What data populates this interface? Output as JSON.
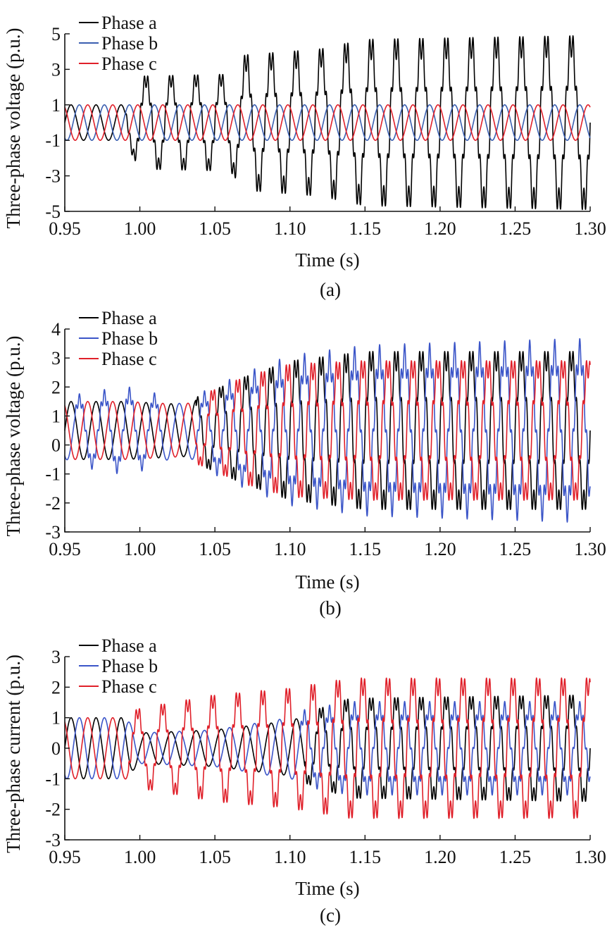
{
  "chart_data": [
    {
      "id": "a",
      "type": "line",
      "caption": "(a)",
      "xlabel": "Time (s)",
      "ylabel": "Three-phase voltage (p.u.)",
      "xlim": [
        0.95,
        1.3
      ],
      "ylim": [
        -5,
        5
      ],
      "xticks": [
        "0.95",
        "1.00",
        "1.05",
        "1.10",
        "1.15",
        "1.20",
        "1.25",
        "1.30"
      ],
      "yticks": [
        "5",
        "3",
        "1",
        "-1",
        "-3",
        "-5"
      ],
      "ytick_values": [
        5,
        3,
        1,
        -1,
        -3,
        -5
      ],
      "legend_position": "top-left",
      "series": [
        {
          "name": "Phase a",
          "color": "#000000",
          "envelope": {
            "t": [
              0.95,
              0.99,
              1.0,
              1.06,
              1.07,
              1.12,
              1.15,
              1.3
            ],
            "amp": [
              1,
              1,
              2.4,
              2.5,
              3.5,
              3.8,
              4.3,
              4.5
            ]
          }
        },
        {
          "name": "Phase b",
          "color": "#3a5fb0",
          "envelope": {
            "t": [
              0.95,
              1.3
            ],
            "amp": [
              1,
              1
            ]
          }
        },
        {
          "name": "Phase c",
          "color": "#e0202a",
          "envelope": {
            "t": [
              0.95,
              1.3
            ],
            "amp": [
              1,
              1
            ]
          }
        }
      ]
    },
    {
      "id": "b",
      "type": "line",
      "caption": "(b)",
      "xlabel": "Time (s)",
      "ylabel": "Three-phase voltage (p.u.)",
      "xlim": [
        0.95,
        1.3
      ],
      "ylim": [
        -3,
        4
      ],
      "xticks": [
        "0.95",
        "1.00",
        "1.05",
        "1.10",
        "1.15",
        "1.20",
        "1.25",
        "1.30"
      ],
      "yticks": [
        "4",
        "3",
        "2",
        "1",
        "0",
        "-1",
        "-2",
        "-3"
      ],
      "ytick_values": [
        4,
        3,
        2,
        1,
        0,
        -1,
        -2,
        -3
      ],
      "legend_position": "top-left",
      "series": [
        {
          "name": "Phase a",
          "color": "#000000",
          "envelope": {
            "t": [
              0.95,
              0.99,
              1.03,
              1.07,
              1.1,
              1.15,
              1.3
            ],
            "amp": [
              1.0,
              1.0,
              0.9,
              1.7,
              2.2,
              2.5,
              2.5
            ],
            "offset": 0.5
          }
        },
        {
          "name": "Phase b",
          "color": "#3b55c8",
          "envelope": {
            "t": [
              0.95,
              0.99,
              1.03,
              1.07,
              1.1,
              1.15,
              1.3
            ],
            "amp": [
              1.0,
              1.3,
              0.9,
              1.7,
              2.2,
              2.5,
              2.7
            ],
            "offset": 0.5
          }
        },
        {
          "name": "Phase c",
          "color": "#e0202a",
          "envelope": {
            "t": [
              0.95,
              0.99,
              1.03,
              1.07,
              1.1,
              1.15,
              1.3
            ],
            "amp": [
              1.0,
              1.0,
              0.9,
              1.7,
              2.1,
              2.2,
              2.2
            ],
            "offset": 0.5
          }
        }
      ]
    },
    {
      "id": "c",
      "type": "line",
      "caption": "(c)",
      "xlabel": "Time (s)",
      "ylabel": "Three-phase current (p.u.)",
      "xlim": [
        0.95,
        1.3
      ],
      "ylim": [
        -3,
        3
      ],
      "xticks": [
        "0.95",
        "1.00",
        "1.05",
        "1.10",
        "1.15",
        "1.20",
        "1.25",
        "1.30"
      ],
      "yticks": [
        "3",
        "2",
        "1",
        "0",
        "-1",
        "-2",
        "-3"
      ],
      "ytick_values": [
        3,
        2,
        1,
        0,
        -1,
        -2,
        -3
      ],
      "legend_position": "top-left",
      "series": [
        {
          "name": "Phase a",
          "color": "#000000",
          "envelope": {
            "t": [
              0.95,
              0.99,
              1.0,
              1.05,
              1.1,
              1.14,
              1.3
            ],
            "amp": [
              1.0,
              1.0,
              0.5,
              0.6,
              0.9,
              1.5,
              1.6
            ]
          }
        },
        {
          "name": "Phase b",
          "color": "#3b55c8",
          "envelope": {
            "t": [
              0.95,
              0.99,
              1.0,
              1.05,
              1.1,
              1.14,
              1.3
            ],
            "amp": [
              1.0,
              1.0,
              0.5,
              0.6,
              1.0,
              1.3,
              1.3
            ]
          }
        },
        {
          "name": "Phase c",
          "color": "#e0202a",
          "envelope": {
            "t": [
              0.95,
              0.99,
              1.0,
              1.05,
              1.1,
              1.14,
              1.3
            ],
            "amp": [
              1.0,
              1.0,
              1.2,
              1.6,
              1.8,
              2.1,
              2.1
            ]
          }
        }
      ]
    }
  ]
}
